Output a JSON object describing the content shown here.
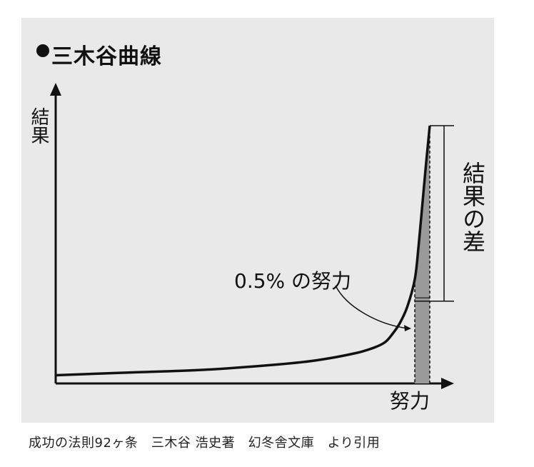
{
  "title": "三木谷曲線",
  "caption": "成功の法則92ヶ条　三木谷 浩史著　幻冬舎文庫　より引用",
  "chart_data": {
    "type": "line",
    "title": "三木谷曲線",
    "xlabel": "努力",
    "ylabel": "結果",
    "grid": false,
    "series": [
      {
        "name": "",
        "x": [
          0,
          20,
          40,
          60,
          70,
          80,
          85,
          88,
          90,
          92,
          94,
          96,
          97,
          98,
          99,
          100
        ],
        "y": [
          3,
          4,
          5,
          7,
          8.5,
          11,
          13,
          15,
          18,
          22,
          28,
          38,
          50,
          65,
          80,
          94
        ]
      }
    ],
    "annotations": [
      {
        "text": "0.5% の努力",
        "x_range": [
          96,
          100
        ]
      },
      {
        "text": "結果の差",
        "y_range": [
          30,
          94
        ]
      }
    ]
  },
  "colors": {
    "background": "#e9e9e9",
    "ink": "#111111",
    "shade": "#9a9a9a"
  }
}
